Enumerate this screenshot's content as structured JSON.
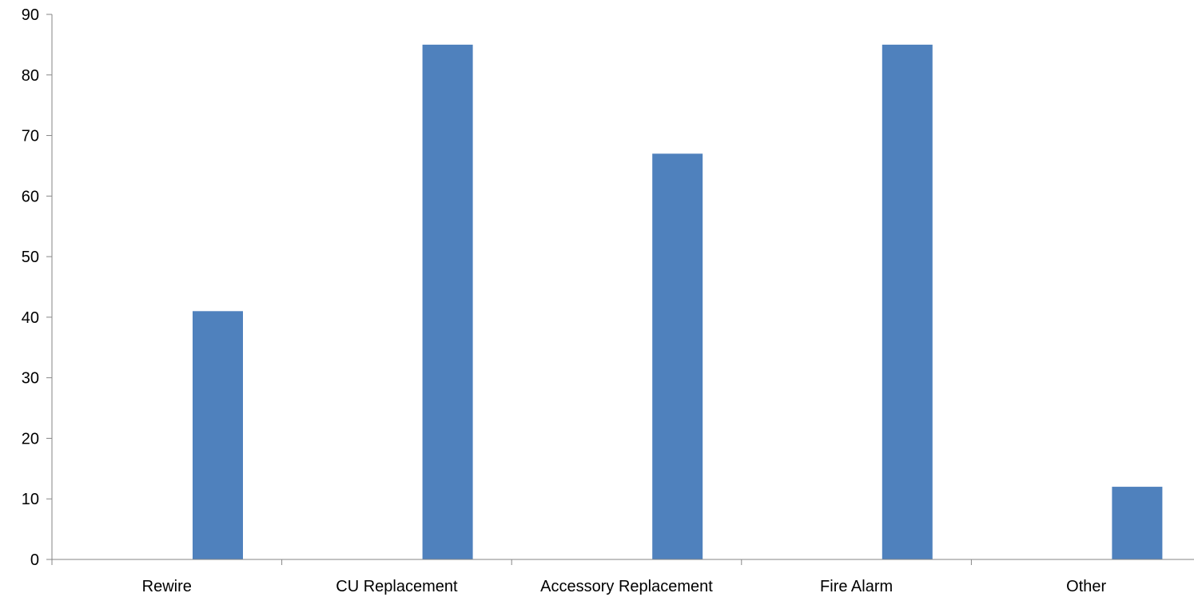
{
  "chart_data": {
    "type": "bar",
    "title": "",
    "xlabel": "",
    "ylabel": "",
    "categories": [
      "Rewire",
      "CU Replacement",
      "Accessory Replacement",
      "Fire Alarm",
      "Other"
    ],
    "values": [
      41,
      85,
      67,
      85,
      12
    ],
    "ylim": [
      0,
      90
    ],
    "yticks": [
      0,
      10,
      20,
      30,
      40,
      50,
      60,
      70,
      80,
      90
    ],
    "grid": false,
    "legend": "none",
    "bar_color": "#4F81BD"
  }
}
